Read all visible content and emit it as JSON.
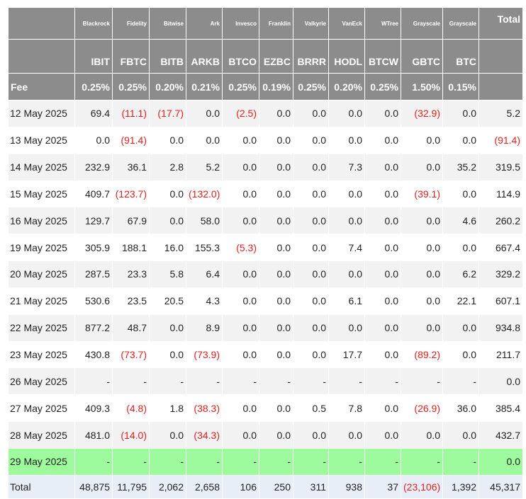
{
  "header": {
    "issuers": [
      "Blackrock",
      "Fidelity",
      "Bitwise",
      "Ark",
      "Invesco",
      "Franklin",
      "Valkyrie",
      "VanEck",
      "WTree",
      "Grayscale",
      "Grayscale"
    ],
    "total_label": "Total",
    "tickers": [
      "IBIT",
      "FBTC",
      "BITB",
      "ARKB",
      "BTCO",
      "EZBC",
      "BRRR",
      "HODL",
      "BTCW",
      "GBTC",
      "BTC"
    ],
    "fee_label": "Fee",
    "fees": [
      "0.25%",
      "0.25%",
      "0.20%",
      "0.21%",
      "0.25%",
      "0.19%",
      "0.25%",
      "0.20%",
      "0.25%",
      "1.50%",
      "0.15%"
    ]
  },
  "rows": [
    {
      "date": "12 May 2025",
      "values": [
        "69.4",
        "(11.1)",
        "(17.7)",
        "0.0",
        "(2.5)",
        "0.0",
        "0.0",
        "0.0",
        "0.0",
        "(32.9)",
        "0.0",
        "5.2"
      ]
    },
    {
      "date": "13 May 2025",
      "values": [
        "0.0",
        "(91.4)",
        "0.0",
        "0.0",
        "0.0",
        "0.0",
        "0.0",
        "0.0",
        "0.0",
        "0.0",
        "0.0",
        "(91.4)"
      ]
    },
    {
      "date": "14 May 2025",
      "values": [
        "232.9",
        "36.1",
        "2.8",
        "5.2",
        "0.0",
        "0.0",
        "0.0",
        "7.3",
        "0.0",
        "0.0",
        "35.2",
        "319.5"
      ]
    },
    {
      "date": "15 May 2025",
      "values": [
        "409.7",
        "(123.7)",
        "0.0",
        "(132.0)",
        "0.0",
        "0.0",
        "0.0",
        "0.0",
        "0.0",
        "(39.1)",
        "0.0",
        "114.9"
      ]
    },
    {
      "date": "16 May 2025",
      "values": [
        "129.7",
        "67.9",
        "0.0",
        "58.0",
        "0.0",
        "0.0",
        "0.0",
        "0.0",
        "0.0",
        "0.0",
        "4.6",
        "260.2"
      ]
    },
    {
      "date": "19 May 2025",
      "values": [
        "305.9",
        "188.1",
        "16.0",
        "155.3",
        "(5.3)",
        "0.0",
        "0.0",
        "7.4",
        "0.0",
        "0.0",
        "0.0",
        "667.4"
      ]
    },
    {
      "date": "20 May 2025",
      "values": [
        "287.5",
        "23.3",
        "5.8",
        "6.4",
        "0.0",
        "0.0",
        "0.0",
        "0.0",
        "0.0",
        "0.0",
        "6.2",
        "329.2"
      ]
    },
    {
      "date": "21 May 2025",
      "values": [
        "530.6",
        "23.5",
        "20.5",
        "4.3",
        "0.0",
        "0.0",
        "0.0",
        "6.1",
        "0.0",
        "0.0",
        "22.1",
        "607.1"
      ]
    },
    {
      "date": "22 May 2025",
      "values": [
        "877.2",
        "48.7",
        "0.0",
        "8.9",
        "0.0",
        "0.0",
        "0.0",
        "0.0",
        "0.0",
        "0.0",
        "0.0",
        "934.8"
      ]
    },
    {
      "date": "23 May 2025",
      "values": [
        "430.8",
        "(73.7)",
        "0.0",
        "(73.9)",
        "0.0",
        "0.0",
        "0.0",
        "17.7",
        "0.0",
        "(89.2)",
        "0.0",
        "211.7"
      ]
    },
    {
      "date": "26 May 2025",
      "values": [
        "-",
        "-",
        "-",
        "-",
        "-",
        "-",
        "-",
        "-",
        "-",
        "-",
        "-",
        "0.0"
      ]
    },
    {
      "date": "27 May 2025",
      "values": [
        "409.3",
        "(4.8)",
        "1.8",
        "(38.3)",
        "0.0",
        "0.0",
        "0.5",
        "7.8",
        "0.0",
        "(26.9)",
        "36.0",
        "385.4"
      ]
    },
    {
      "date": "28 May 2025",
      "values": [
        "481.0",
        "(14.0)",
        "0.0",
        "(34.3)",
        "0.0",
        "0.0",
        "0.0",
        "0.0",
        "0.0",
        "0.0",
        "0.0",
        "432.7"
      ]
    },
    {
      "date": "29 May 2025",
      "values": [
        "-",
        "-",
        "-",
        "-",
        "-",
        "-",
        "-",
        "-",
        "-",
        "-",
        "-",
        "0.0"
      ]
    }
  ],
  "totals": {
    "label": "Total",
    "values": [
      "48,875",
      "11,795",
      "2,062",
      "2,658",
      "106",
      "250",
      "311",
      "938",
      "37",
      "(23,106)",
      "1,392",
      "45,317"
    ]
  }
}
